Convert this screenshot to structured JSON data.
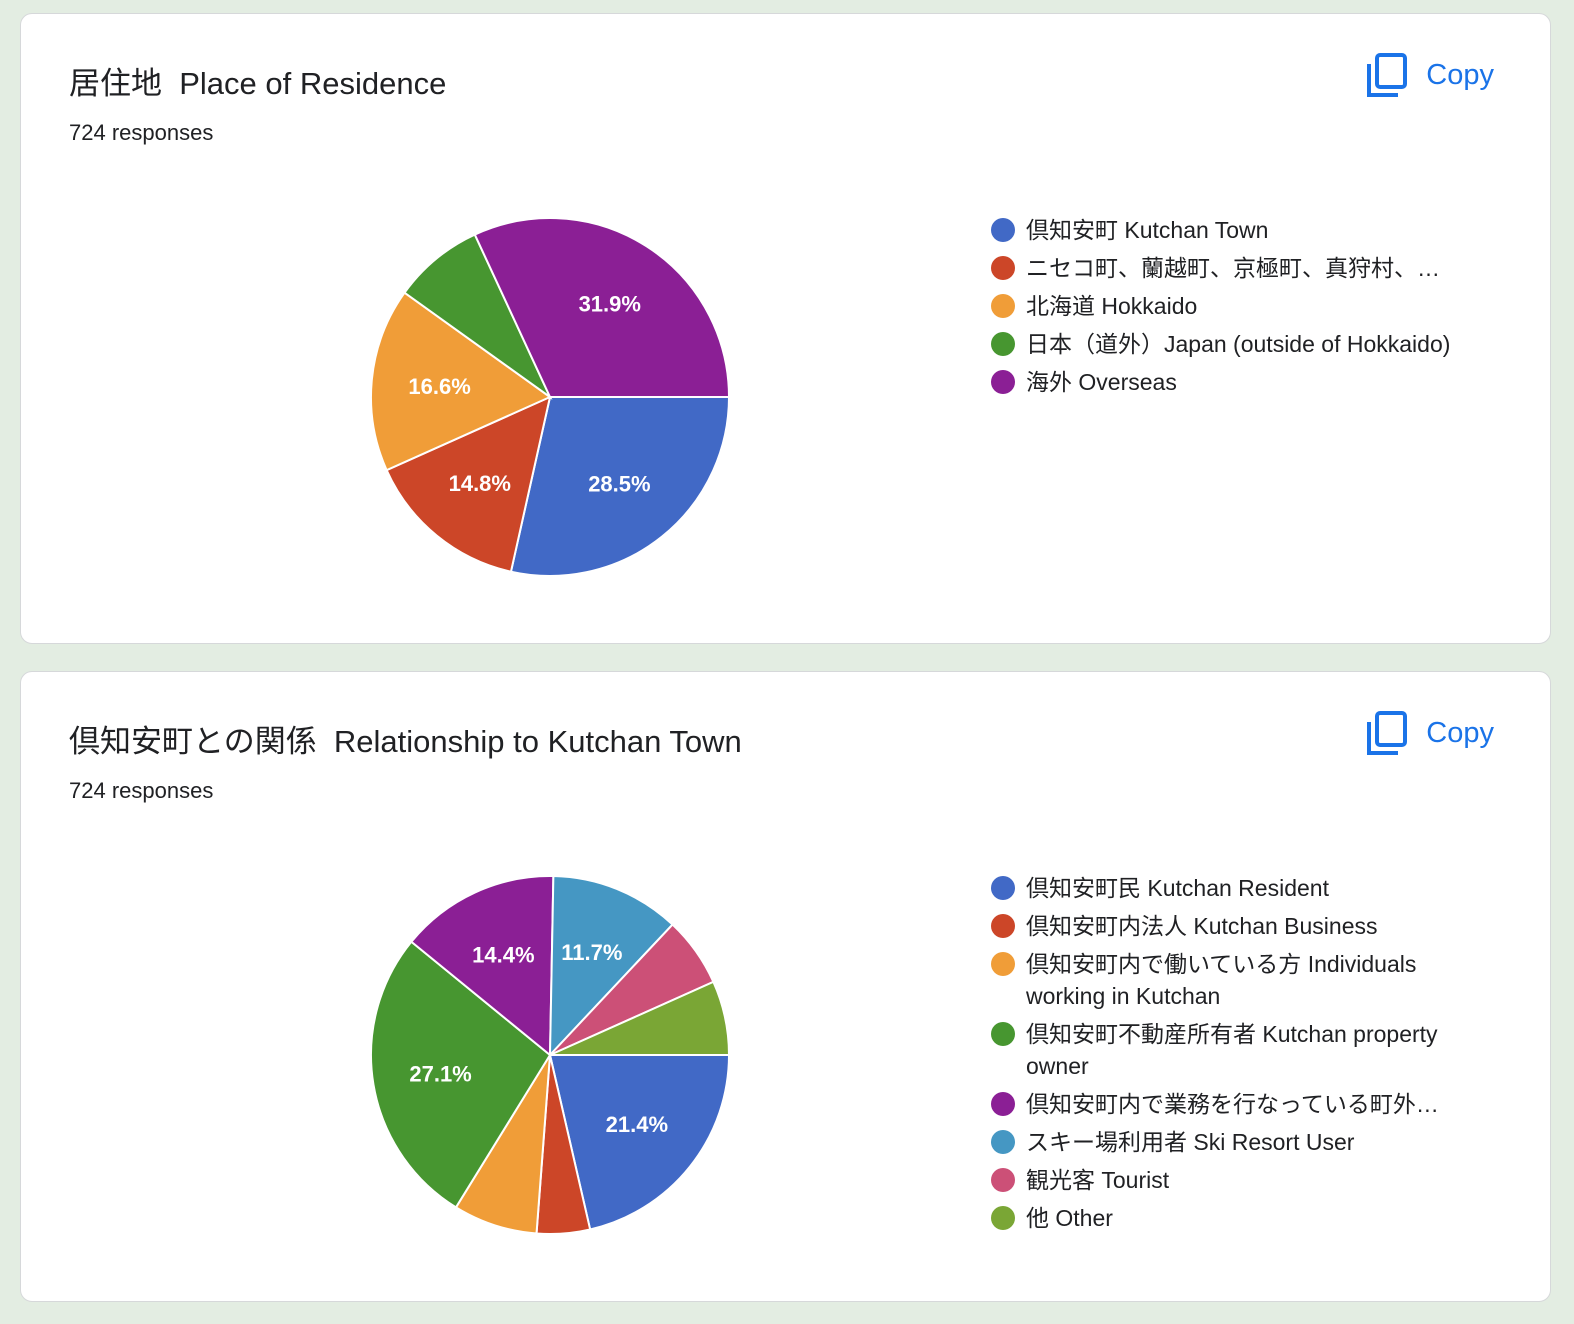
{
  "copy_label": "Copy",
  "cards": [
    {
      "title": "居住地  Place of Residence",
      "responses": "724 responses",
      "legend": [
        {
          "label": "倶知安町 Kutchan Town",
          "color": "#4169c6",
          "truncated": false
        },
        {
          "label": "ニセコ町、蘭越町、京極町、真狩村、…",
          "color": "#cc4628",
          "truncated": true
        },
        {
          "label": "北海道 Hokkaido",
          "color": "#f09d38",
          "truncated": false
        },
        {
          "label": "日本（道外）Japan (outside of Hokkaido)",
          "color": "#479630",
          "truncated": false
        },
        {
          "label": "海外 Overseas",
          "color": "#8b1f95",
          "truncated": false
        }
      ]
    },
    {
      "title": "倶知安町との関係  Relationship to Kutchan Town",
      "responses": "724 responses",
      "legend": [
        {
          "label": "倶知安町民 Kutchan Resident",
          "color": "#4169c6",
          "truncated": false
        },
        {
          "label": "倶知安町内法人 Kutchan Business",
          "color": "#cc4628",
          "truncated": false
        },
        {
          "label": "倶知安町内で働いている方 Individuals working in Kutchan",
          "color": "#f09d38",
          "truncated": false
        },
        {
          "label": "倶知安町不動産所有者 Kutchan property owner",
          "color": "#479630",
          "truncated": false
        },
        {
          "label": "倶知安町内で業務を行なっている町外…",
          "color": "#8b1f95",
          "truncated": true
        },
        {
          "label": "スキー場利用者 Ski Resort User",
          "color": "#4597c3",
          "truncated": false
        },
        {
          "label": "観光客 Tourist",
          "color": "#cc5077",
          "truncated": false
        },
        {
          "label": "他 Other",
          "color": "#7aa635",
          "truncated": false
        }
      ]
    }
  ],
  "chart_data": [
    {
      "type": "pie",
      "title": "居住地  Place of Residence",
      "subtitle": "724 responses",
      "categories": [
        "倶知安町 Kutchan Town",
        "ニセコ町、蘭越町、京極町、真狩村、…",
        "北海道 Hokkaido",
        "日本（道外）Japan (outside of Hokkaido)",
        "海外 Overseas"
      ],
      "values": [
        28.5,
        14.8,
        16.6,
        8.2,
        31.9
      ],
      "labels": [
        "28.5%",
        "14.8%",
        "16.6%",
        "",
        "31.9%"
      ],
      "colors": [
        "#4169c6",
        "#cc4628",
        "#f09d38",
        "#479630",
        "#8b1f95"
      ],
      "legend_position": "right"
    },
    {
      "type": "pie",
      "title": "倶知安町との関係  Relationship to Kutchan Town",
      "subtitle": "724 responses",
      "categories": [
        "倶知安町民 Kutchan Resident",
        "倶知安町内法人 Kutchan Business",
        "倶知安町内で働いている方 Individuals working in Kutchan",
        "倶知安町不動産所有者 Kutchan property owner",
        "倶知安町内で業務を行なっている町外…",
        "スキー場利用者 Ski Resort User",
        "観光客 Tourist",
        "他 Other"
      ],
      "values": [
        21.4,
        4.8,
        7.6,
        27.1,
        14.4,
        11.7,
        6.3,
        6.7
      ],
      "labels": [
        "21.4%",
        "",
        "",
        "27.1%",
        "14.4%",
        "11.7%",
        "",
        ""
      ],
      "colors": [
        "#4169c6",
        "#cc4628",
        "#f09d38",
        "#479630",
        "#8b1f95",
        "#4597c3",
        "#cc5077",
        "#7aa635"
      ],
      "legend_position": "right"
    }
  ]
}
